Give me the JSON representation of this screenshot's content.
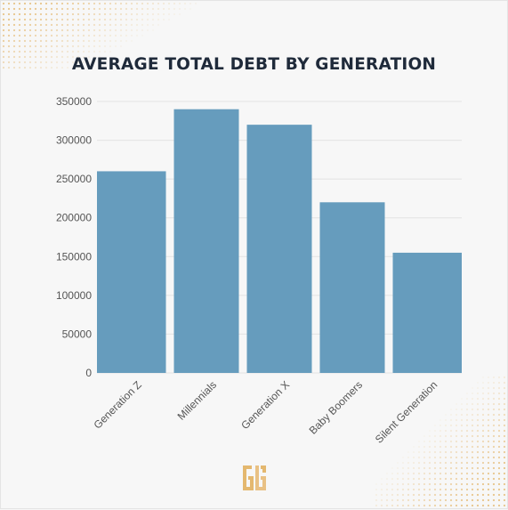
{
  "chart_data": {
    "type": "bar",
    "title": "AVERAGE TOTAL DEBT BY GENERATION",
    "xlabel": "",
    "ylabel": "",
    "categories": [
      "Generation Z",
      "Millennials",
      "Generation X",
      "Baby Boomers",
      "Silent Generation"
    ],
    "values": [
      260000,
      340000,
      320000,
      220000,
      155000
    ],
    "ylim": [
      0,
      350000
    ],
    "yticks": [
      "0",
      "50000",
      "100000",
      "150000",
      "200000",
      "250000",
      "300000",
      "350000"
    ],
    "grid": true,
    "legend": "none"
  },
  "colors": {
    "bar": "#669cbd",
    "title": "#1f2a3a",
    "axis_text": "#555555",
    "gridline": "#e3e3e3",
    "accent_gold": "#e4b86f"
  },
  "branding": {
    "logo_icon": "gold-monogram-logo"
  }
}
